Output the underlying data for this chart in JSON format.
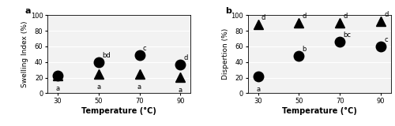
{
  "temperatures": [
    30,
    50,
    70,
    90
  ],
  "panel_a": {
    "label": "a",
    "ylabel": "Swelling Index (%)",
    "circle_values": [
      23,
      40,
      49,
      37
    ],
    "triangle_values": [
      23,
      25,
      25,
      21
    ],
    "circle_labels_above": [
      "",
      "bd",
      "c",
      "d"
    ],
    "triangle_labels_below": [
      "a",
      "a",
      "a",
      "a"
    ],
    "ylim": [
      0,
      100
    ],
    "yticks": [
      0,
      20,
      40,
      60,
      80,
      100
    ]
  },
  "panel_b": {
    "label": "b",
    "ylabel": "Dispertion (%)",
    "circle_values": [
      22,
      48,
      66,
      60
    ],
    "triangle_values": [
      88,
      90,
      90,
      92
    ],
    "circle_labels_above": [
      "",
      "b",
      "bc",
      "c"
    ],
    "circle_labels_below": [
      "a",
      "",
      "",
      ""
    ],
    "triangle_labels_above": [
      "d",
      "d",
      "d",
      "d"
    ],
    "ylim": [
      0,
      100
    ],
    "yticks": [
      0,
      20,
      40,
      60,
      80,
      100
    ]
  },
  "xlabel": "Temperature (°C)",
  "marker_circle": "o",
  "marker_triangle": "^",
  "circle_size": 9,
  "triangle_size": 8,
  "marker_color": "black",
  "font_size_ylabel": 6.5,
  "font_size_xlabel": 7,
  "font_size_tick": 6,
  "font_size_annot": 6,
  "font_size_panel_label": 8,
  "xticks": [
    30,
    50,
    70,
    90
  ],
  "bg_color": "#f2f2f2",
  "grid_color": "white"
}
